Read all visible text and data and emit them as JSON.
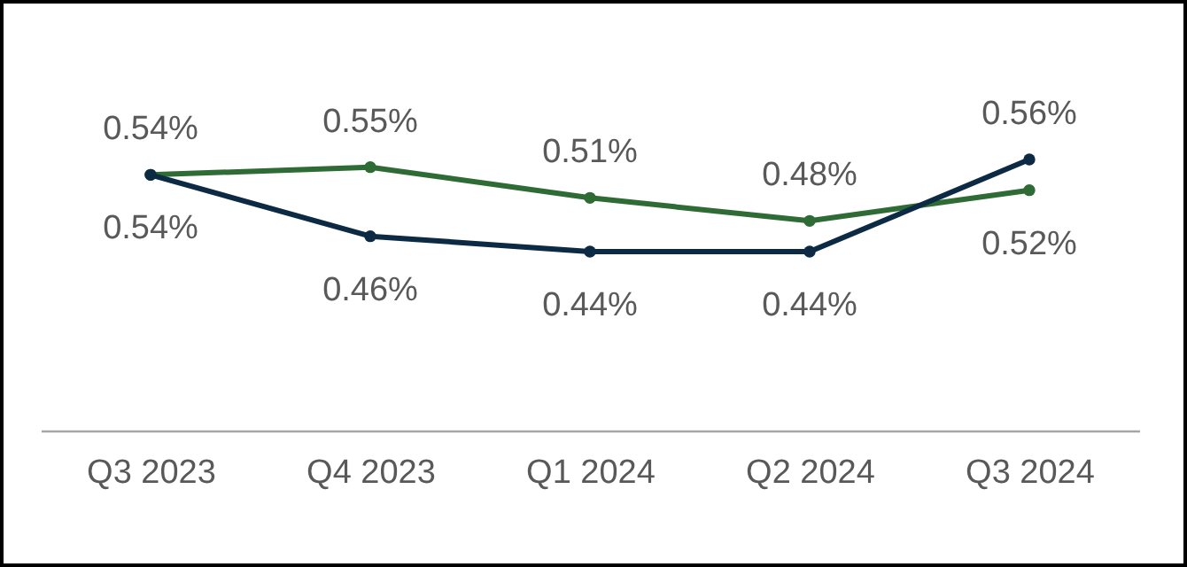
{
  "chart_data": {
    "type": "line",
    "categories": [
      "Q3 2023",
      "Q4 2023",
      "Q1 2024",
      "Q2 2024",
      "Q3 2024"
    ],
    "series": [
      {
        "color": "#2f6b35",
        "values": [
          0.54,
          0.55,
          0.51,
          0.48,
          0.52
        ],
        "value_labels": [
          "0.54%",
          "0.55%",
          "0.51%",
          "0.48%",
          "0.52%"
        ]
      },
      {
        "color": "#0c2a44",
        "values": [
          0.54,
          0.46,
          0.44,
          0.44,
          0.56
        ],
        "value_labels": [
          "0.54%",
          "0.46%",
          "0.44%",
          "0.44%",
          "0.56%"
        ]
      }
    ],
    "marker": "circle",
    "line_style": "solid",
    "tick_labels": "x"
  }
}
